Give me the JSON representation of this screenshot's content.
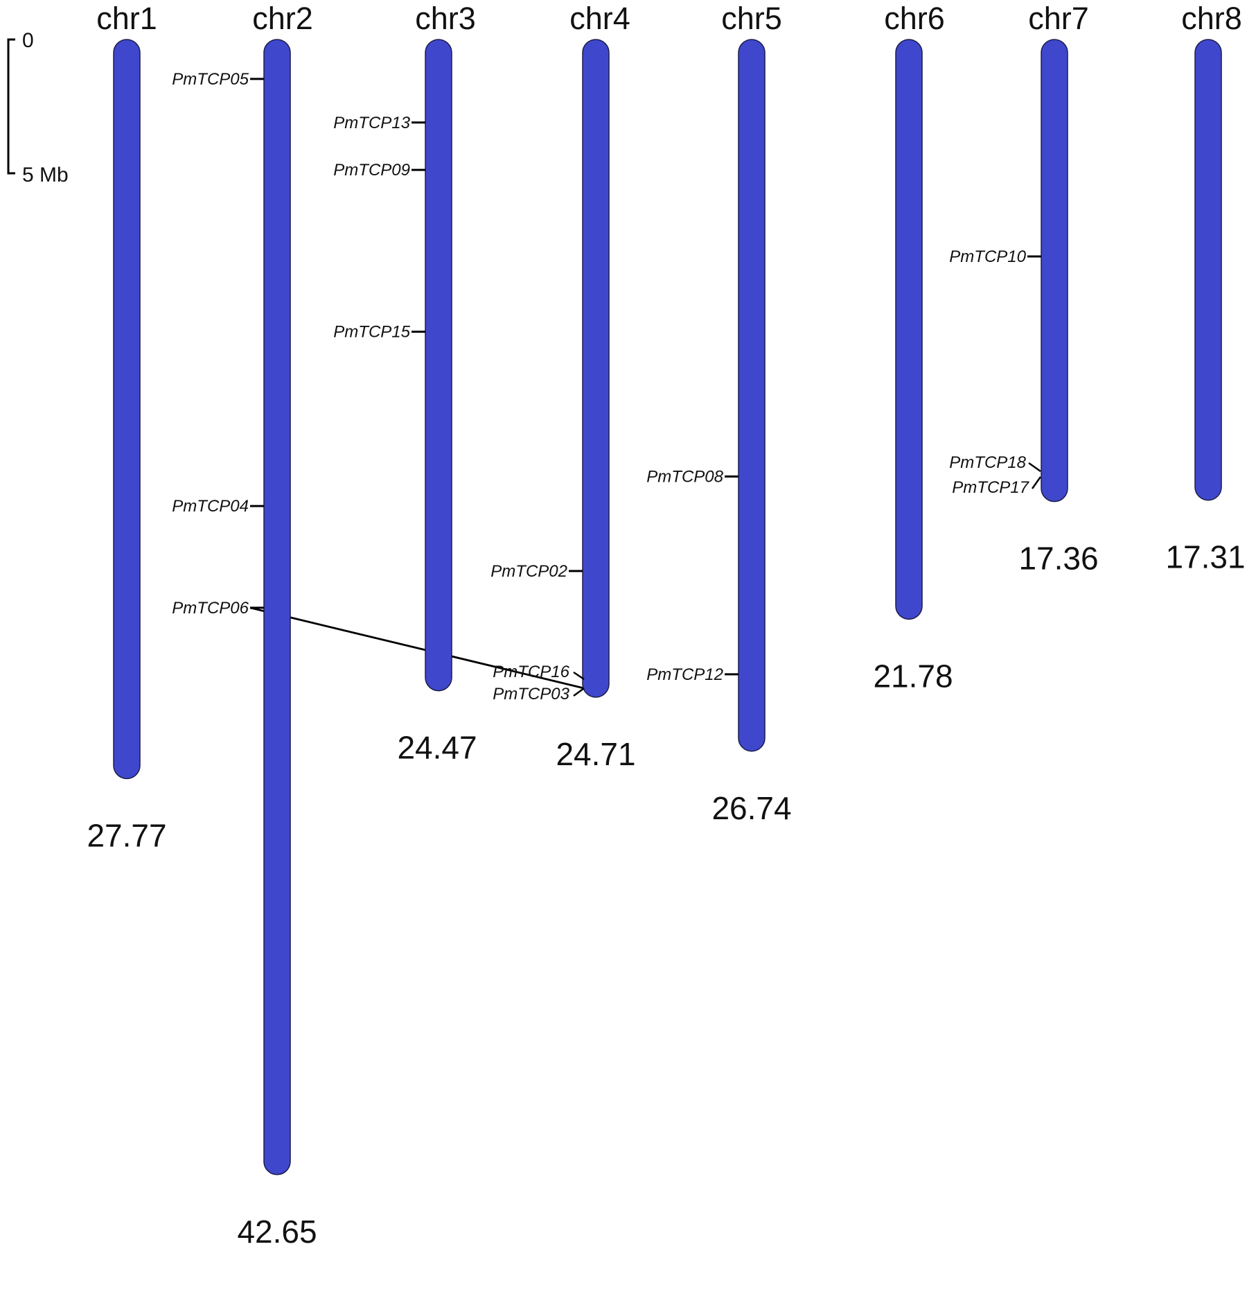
{
  "bar_color": "#3f48cc",
  "scale": {
    "zero_label": "0",
    "mark_label": "5 Mb",
    "mark_value": 5
  },
  "chromosomes": [
    {
      "name": "chr1",
      "length": 27.77,
      "length_label": "27.77",
      "genes": []
    },
    {
      "name": "chr2",
      "length": 42.65,
      "length_label": "42.65",
      "genes": [
        {
          "name": "PmTCP05",
          "pos": 1.48
        },
        {
          "name": "PmTCP04",
          "pos": 17.53
        },
        {
          "name": "PmTCP06",
          "pos": 21.35
        }
      ]
    },
    {
      "name": "chr3",
      "length": 24.47,
      "length_label": "24.47",
      "genes": [
        {
          "name": "PmTCP13",
          "pos": 3.12
        },
        {
          "name": "PmTCP09",
          "pos": 4.9
        },
        {
          "name": "PmTCP15",
          "pos": 10.98
        }
      ]
    },
    {
      "name": "chr4",
      "length": 24.71,
      "length_label": "24.71",
      "genes": [
        {
          "name": "PmTCP02",
          "pos": 19.97
        },
        {
          "name": "PmTCP16",
          "pos": 22.0
        },
        {
          "name": "PmTCP03",
          "pos": 22.3
        }
      ]
    },
    {
      "name": "chr5",
      "length": 26.74,
      "length_label": "26.74",
      "genes": [
        {
          "name": "PmTCP08",
          "pos": 16.42
        },
        {
          "name": "PmTCP12",
          "pos": 23.85
        }
      ]
    },
    {
      "name": "chr6",
      "length": 21.78,
      "length_label": "21.78",
      "genes": []
    },
    {
      "name": "chr7",
      "length": 17.36,
      "length_label": "17.36",
      "genes": [
        {
          "name": "PmTCP10",
          "pos": 8.15
        },
        {
          "name": "PmTCP18",
          "pos": 15.0
        },
        {
          "name": "PmTCP17",
          "pos": 15.15
        }
      ]
    },
    {
      "name": "chr8",
      "length": 17.31,
      "length_label": "17.31",
      "genes": []
    }
  ],
  "duplications": [
    {
      "from_gene": "PmTCP06",
      "to_gene": "PmTCP03"
    }
  ]
}
